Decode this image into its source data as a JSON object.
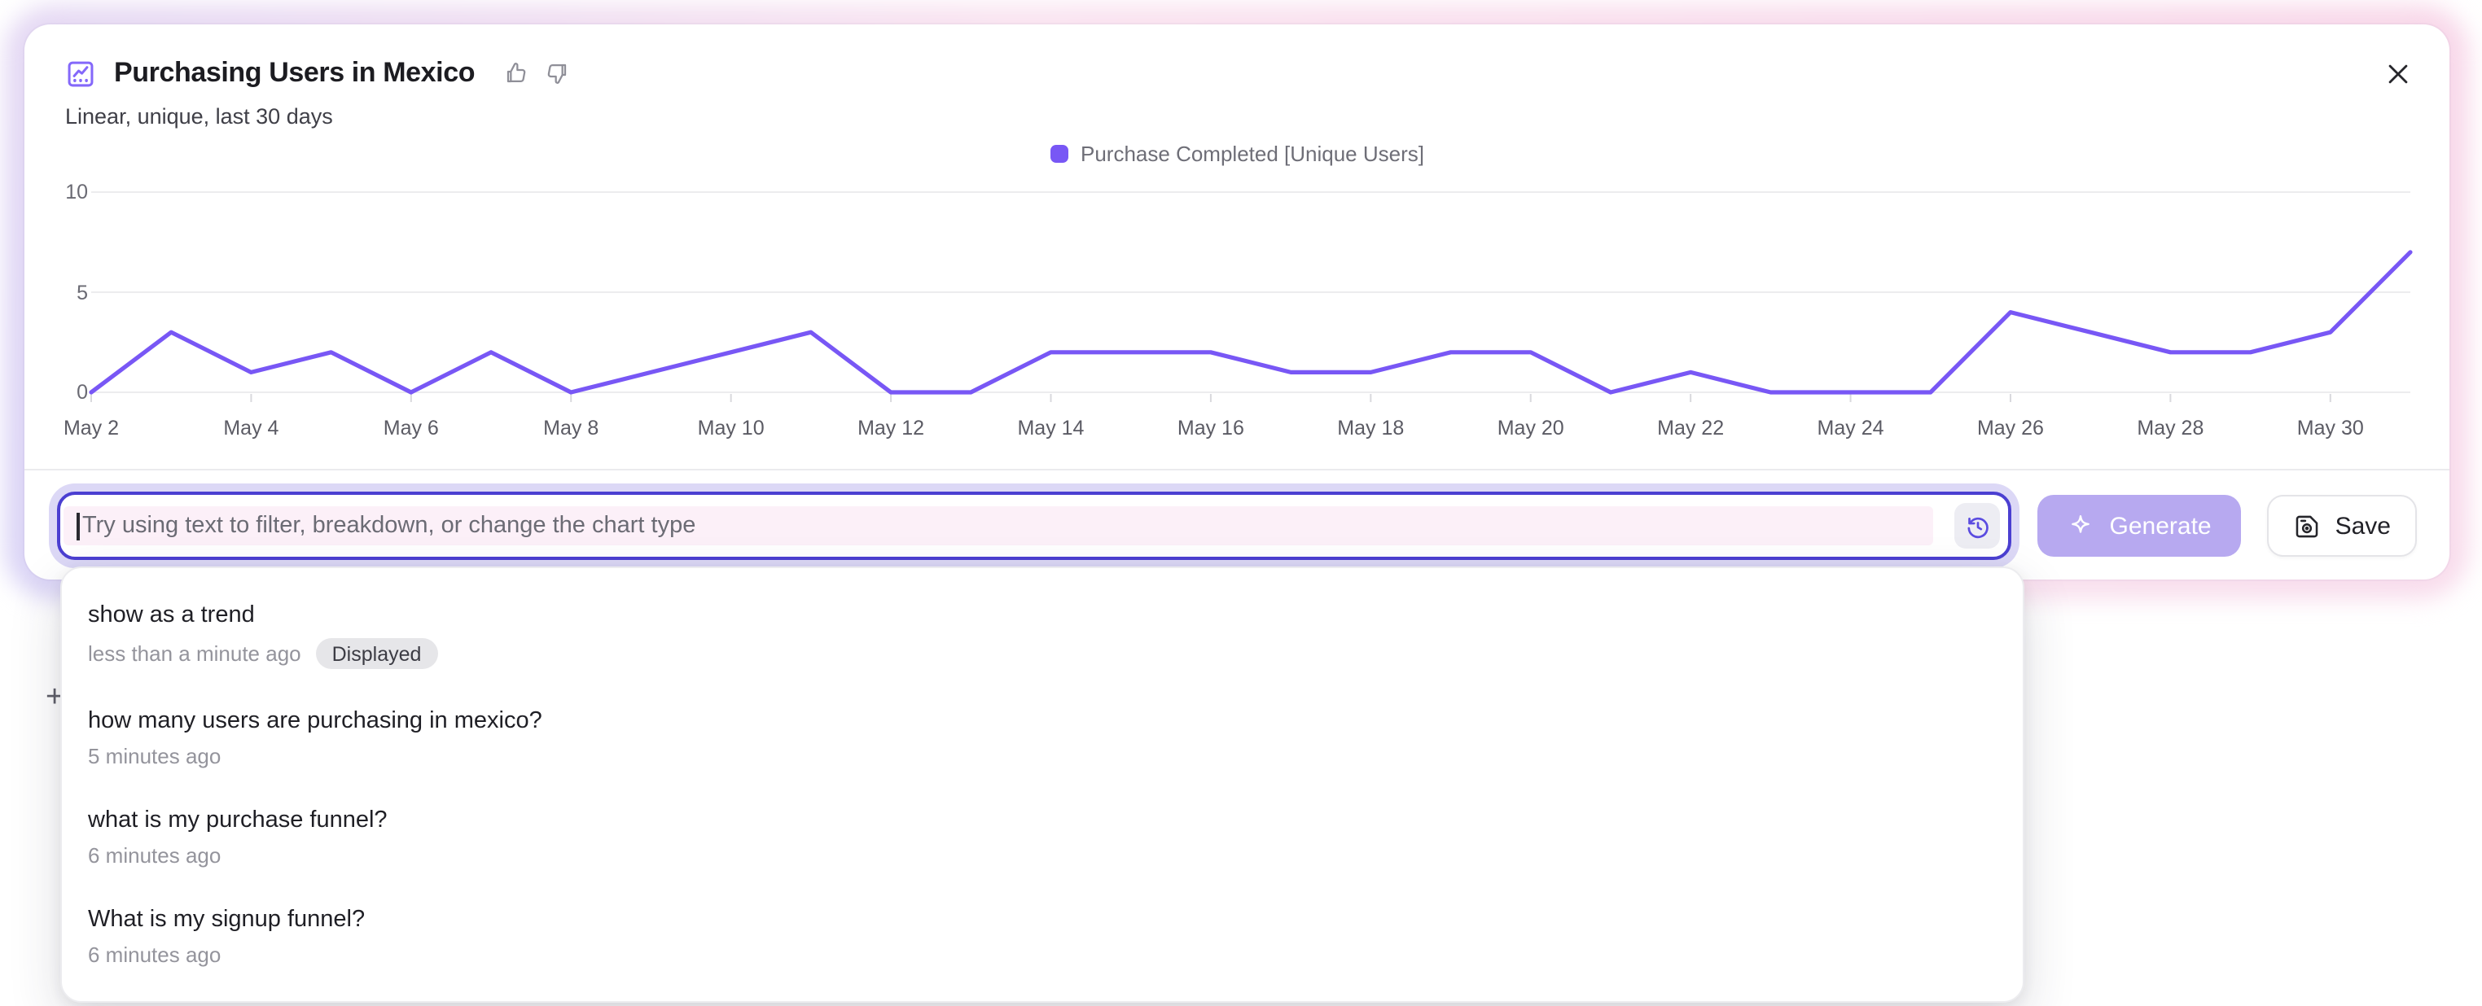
{
  "header": {
    "title": "Purchasing Users in Mexico",
    "subtitle": "Linear, unique, last 30 days"
  },
  "chart_data": {
    "type": "line",
    "title": "Purchasing Users in Mexico",
    "x": [
      "May 2",
      "May 3",
      "May 4",
      "May 5",
      "May 6",
      "May 7",
      "May 8",
      "May 9",
      "May 10",
      "May 11",
      "May 12",
      "May 13",
      "May 14",
      "May 15",
      "May 16",
      "May 17",
      "May 18",
      "May 19",
      "May 20",
      "May 21",
      "May 22",
      "May 23",
      "May 24",
      "May 25",
      "May 26",
      "May 27",
      "May 28",
      "May 29",
      "May 30",
      "May 31"
    ],
    "series": [
      {
        "name": "Purchase Completed [Unique Users]",
        "color": "#7857f5",
        "values": [
          0,
          3,
          1,
          2,
          0,
          2,
          0,
          1,
          2,
          3,
          0,
          0,
          2,
          2,
          2,
          1,
          1,
          2,
          2,
          0,
          1,
          0,
          0,
          0,
          4,
          3,
          2,
          2,
          3,
          7
        ]
      }
    ],
    "x_tick_labels": [
      "May 2",
      "May 4",
      "May 6",
      "May 8",
      "May 10",
      "May 12",
      "May 14",
      "May 16",
      "May 18",
      "May 20",
      "May 22",
      "May 24",
      "May 26",
      "May 28",
      "May 30"
    ],
    "yticks": [
      0,
      5,
      10
    ],
    "ylim": [
      0,
      10
    ],
    "grid": "horizontal",
    "legend_position": "top-center"
  },
  "prompt": {
    "placeholder": "Try using text to filter, breakdown, or change the chart type",
    "generate_label": "Generate",
    "save_label": "Save"
  },
  "history": [
    {
      "query": "show as a trend",
      "time": "less than a minute ago",
      "badge": "Displayed"
    },
    {
      "query": "how many users are purchasing in mexico?",
      "time": "5 minutes ago",
      "badge": ""
    },
    {
      "query": "what is my purchase funnel?",
      "time": "6 minutes ago",
      "badge": ""
    },
    {
      "query": "What is my signup funnel?",
      "time": "6 minutes ago",
      "badge": ""
    }
  ],
  "background": {
    "plus_glyph": "+"
  },
  "colors": {
    "accent_purple": "#7857f5",
    "input_border": "#4b3fd1",
    "input_focus_ring": "#dcd8f6",
    "input_highlight_pink": "#fcf0f8",
    "generate_disabled_bg": "#b7a9f0",
    "glow_pink": "#f8d7e9",
    "glow_lavender": "#d9d3f6",
    "badge_bg": "#e6e6e9"
  }
}
